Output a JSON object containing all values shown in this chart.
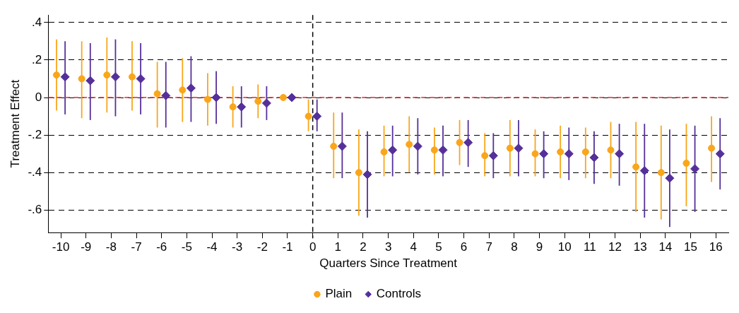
{
  "chart_data": {
    "type": "scatter",
    "xlabel": "Quarters Since Treatment",
    "ylabel": "Treatment Effect",
    "xlim": [
      -10.5,
      16.5
    ],
    "xticks": [
      -10,
      -9,
      -8,
      -7,
      -6,
      -5,
      -4,
      -3,
      -2,
      -1,
      0,
      1,
      2,
      3,
      4,
      5,
      6,
      7,
      8,
      9,
      10,
      11,
      12,
      13,
      14,
      15,
      16
    ],
    "ylim": [
      -0.72,
      0.44
    ],
    "yticks": [
      {
        "value": 0.4,
        "label": ".4"
      },
      {
        "value": 0.2,
        "label": ".2"
      },
      {
        "value": 0,
        "label": "0"
      },
      {
        "value": -0.2,
        "label": "-.2"
      },
      {
        "value": -0.4,
        "label": "-.4"
      },
      {
        "value": -0.6,
        "label": "-.6"
      }
    ],
    "grid": "y",
    "legend": "bottom",
    "ref_lines": [
      {
        "axis": "y",
        "value": 0,
        "color": "#e3242b",
        "line_style": "dashed"
      },
      {
        "axis": "x",
        "value": 0,
        "color": "#000000",
        "line_style": "dashed"
      }
    ],
    "series": [
      {
        "name": "Plain",
        "color": "#f9a61a",
        "marker": "circle",
        "x": [
          -10.17,
          -9.17,
          -8.17,
          -7.17,
          -6.17,
          -5.17,
          -4.17,
          -3.17,
          -2.17,
          -1.17,
          -0.17,
          0.83,
          1.83,
          2.83,
          3.83,
          4.83,
          5.83,
          6.83,
          7.83,
          8.83,
          9.83,
          10.83,
          11.83,
          12.83,
          13.83,
          14.83,
          15.83
        ],
        "values": [
          0.12,
          0.1,
          0.12,
          0.11,
          0.02,
          0.04,
          -0.01,
          -0.05,
          -0.02,
          0,
          -0.1,
          -0.26,
          -0.4,
          -0.29,
          -0.25,
          -0.28,
          -0.24,
          -0.31,
          -0.27,
          -0.3,
          -0.29,
          -0.29,
          -0.28,
          -0.37,
          -0.4,
          -0.35,
          -0.27
        ],
        "errors": [
          [
            -0.07,
            0.31
          ],
          [
            -0.11,
            0.3
          ],
          [
            -0.08,
            0.32
          ],
          [
            -0.07,
            0.3
          ],
          [
            -0.16,
            0.19
          ],
          [
            -0.13,
            0.21
          ],
          [
            -0.15,
            0.13
          ],
          [
            -0.16,
            0.06
          ],
          [
            -0.11,
            0.07
          ],
          null,
          [
            -0.18,
            -0.01
          ],
          [
            -0.43,
            -0.08
          ],
          [
            -0.63,
            -0.17
          ],
          [
            -0.42,
            -0.15
          ],
          [
            -0.4,
            -0.1
          ],
          [
            -0.41,
            -0.16
          ],
          [
            -0.36,
            -0.12
          ],
          [
            -0.42,
            -0.19
          ],
          [
            -0.42,
            -0.12
          ],
          [
            -0.42,
            -0.17
          ],
          [
            -0.43,
            -0.15
          ],
          [
            -0.43,
            -0.16
          ],
          [
            -0.43,
            -0.13
          ],
          [
            -0.61,
            -0.13
          ],
          [
            -0.65,
            -0.15
          ],
          [
            -0.58,
            -0.14
          ],
          [
            -0.45,
            -0.1
          ]
        ]
      },
      {
        "name": "Controls",
        "color": "#55309a",
        "marker": "diamond",
        "x": [
          -9.83,
          -8.83,
          -7.83,
          -6.83,
          -5.83,
          -4.83,
          -3.83,
          -2.83,
          -1.83,
          -0.83,
          0.17,
          1.17,
          2.17,
          3.17,
          4.17,
          5.17,
          6.17,
          7.17,
          8.17,
          9.17,
          10.17,
          11.17,
          12.17,
          13.17,
          14.17,
          15.17,
          16.17
        ],
        "values": [
          0.11,
          0.09,
          0.11,
          0.1,
          0.01,
          0.05,
          0,
          -0.05,
          -0.03,
          0,
          -0.1,
          -0.26,
          -0.41,
          -0.28,
          -0.26,
          -0.28,
          -0.24,
          -0.31,
          -0.27,
          -0.3,
          -0.3,
          -0.32,
          -0.3,
          -0.39,
          -0.43,
          -0.38,
          -0.3
        ],
        "errors": [
          [
            -0.09,
            0.3
          ],
          [
            -0.12,
            0.29
          ],
          [
            -0.1,
            0.31
          ],
          [
            -0.09,
            0.29
          ],
          [
            -0.16,
            0.19
          ],
          [
            -0.13,
            0.22
          ],
          [
            -0.14,
            0.14
          ],
          [
            -0.16,
            0.06
          ],
          [
            -0.12,
            0.06
          ],
          null,
          [
            -0.18,
            -0.01
          ],
          [
            -0.43,
            -0.08
          ],
          [
            -0.64,
            -0.18
          ],
          [
            -0.42,
            -0.15
          ],
          [
            -0.41,
            -0.11
          ],
          [
            -0.42,
            -0.15
          ],
          [
            -0.37,
            -0.12
          ],
          [
            -0.43,
            -0.19
          ],
          [
            -0.42,
            -0.12
          ],
          [
            -0.43,
            -0.18
          ],
          [
            -0.44,
            -0.16
          ],
          [
            -0.46,
            -0.18
          ],
          [
            -0.47,
            -0.14
          ],
          [
            -0.64,
            -0.14
          ],
          [
            -0.69,
            -0.17
          ],
          [
            -0.61,
            -0.15
          ],
          [
            -0.49,
            -0.11
          ]
        ]
      }
    ]
  }
}
